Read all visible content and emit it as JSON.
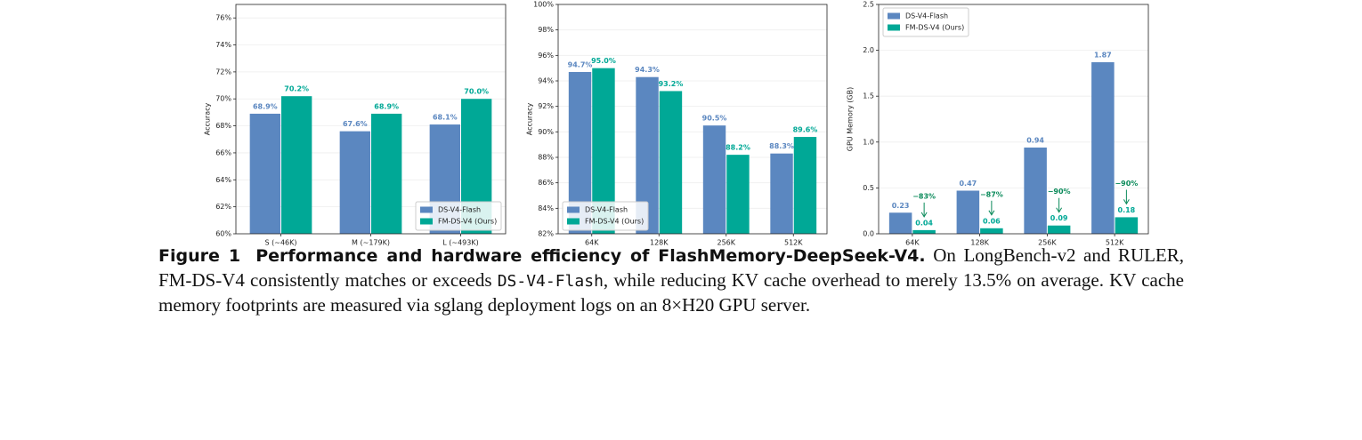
{
  "chart_data": [
    {
      "type": "bar",
      "ylabel": "Accuracy",
      "categories": [
        "S (~46K)",
        "M (~179K)",
        "L (~493K)"
      ],
      "series": [
        {
          "name": "DS-V4-Flash",
          "color": "#5b87c0",
          "values": [
            68.9,
            67.6,
            68.1
          ],
          "value_labels": [
            "68.9%",
            "67.6%",
            "68.1%"
          ]
        },
        {
          "name": "FM-DS-V4 (Ours)",
          "color": "#00a896",
          "values": [
            70.2,
            68.9,
            70.0
          ],
          "value_labels": [
            "70.2%",
            "68.9%",
            "70.0%"
          ]
        }
      ],
      "ylim": [
        60,
        77
      ],
      "yticks": [
        {
          "value": 60,
          "label": "60%"
        },
        {
          "value": 62,
          "label": "62%"
        },
        {
          "value": 64,
          "label": "64%"
        },
        {
          "value": 66,
          "label": "66%"
        },
        {
          "value": 68,
          "label": "68%"
        },
        {
          "value": 70,
          "label": "70%"
        },
        {
          "value": 72,
          "label": "72%"
        },
        {
          "value": 74,
          "label": "74%"
        },
        {
          "value": 76,
          "label": "76%"
        }
      ],
      "grid": true,
      "legend": "lower right"
    },
    {
      "type": "bar",
      "ylabel": "Accuracy",
      "categories": [
        "64K",
        "128K",
        "256K",
        "512K"
      ],
      "series": [
        {
          "name": "DS-V4-Flash",
          "color": "#5b87c0",
          "values": [
            94.7,
            94.3,
            90.5,
            88.3
          ],
          "value_labels": [
            "94.7%",
            "94.3%",
            "90.5%",
            "88.3%"
          ]
        },
        {
          "name": "FM-DS-V4 (Ours)",
          "color": "#00a896",
          "values": [
            95.0,
            93.2,
            88.2,
            89.6
          ],
          "value_labels": [
            "95.0%",
            "93.2%",
            "88.2%",
            "89.6%"
          ]
        }
      ],
      "ylim": [
        82,
        100
      ],
      "yticks": [
        {
          "value": 82,
          "label": "82%"
        },
        {
          "value": 84,
          "label": "84%"
        },
        {
          "value": 86,
          "label": "86%"
        },
        {
          "value": 88,
          "label": "88%"
        },
        {
          "value": 90,
          "label": "90%"
        },
        {
          "value": 92,
          "label": "92%"
        },
        {
          "value": 94,
          "label": "94%"
        },
        {
          "value": 96,
          "label": "96%"
        },
        {
          "value": 98,
          "label": "98%"
        },
        {
          "value": 100,
          "label": "100%"
        }
      ],
      "grid": true,
      "legend": "lower left"
    },
    {
      "type": "bar",
      "ylabel": "GPU Memory (GB)",
      "categories": [
        "64K",
        "128K",
        "256K",
        "512K"
      ],
      "series": [
        {
          "name": "DS-V4-Flash",
          "color": "#5b87c0",
          "values": [
            0.23,
            0.47,
            0.94,
            1.87
          ]
        },
        {
          "name": "FM-DS-V4 (Ours)",
          "color": "#00a896",
          "values": [
            0.04,
            0.06,
            0.09,
            0.18
          ]
        }
      ],
      "annotations": [
        "−83%",
        "−87%",
        "−90%",
        "−90%"
      ],
      "ylim": [
        0,
        2.5
      ],
      "yticks": [
        {
          "value": 0,
          "label": "0.0"
        },
        0.5,
        {
          "value": 1,
          "label": "1.0"
        },
        1.5,
        {
          "value": 2,
          "label": "2.0"
        },
        2.5
      ],
      "grid": true,
      "legend": "upper left"
    }
  ],
  "caption": {
    "label": "Figure 1",
    "title": "Performance and hardware efficiency of FlashMemory-DeepSeek-V4.",
    "text": [
      "On LongBench-v2 and RULER, FM-DS-V4 consistently matches or exceeds",
      ", while reducing KV cache overhead to merely 13.5% on average. KV cache memory footprints are measured via sglang deployment logs on an 8×H20 GPU server."
    ],
    "code": "DS-V4-Flash"
  }
}
